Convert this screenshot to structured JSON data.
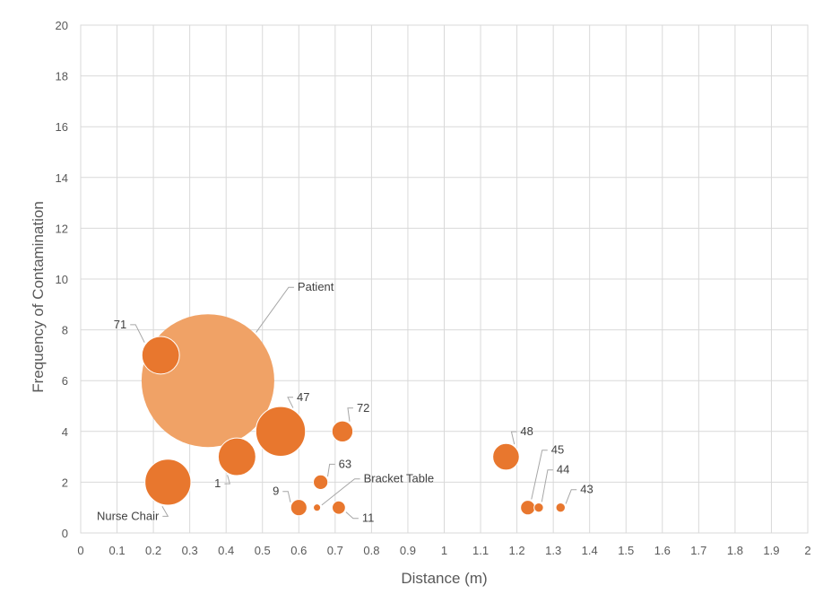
{
  "chart_data": {
    "type": "bubble",
    "xlabel": "Distance (m)",
    "ylabel": "Frequency of Contamination",
    "xlim": [
      0,
      2
    ],
    "ylim": [
      0,
      20
    ],
    "grid": true,
    "x_ticks": [
      "0",
      "0.1",
      "0.2",
      "0.3",
      "0.4",
      "0.5",
      "0.6",
      "0.7",
      "0.8",
      "0.9",
      "1",
      "1.1",
      "1.2",
      "1.3",
      "1.4",
      "1.5",
      "1.6",
      "1.7",
      "1.8",
      "1.9",
      "2"
    ],
    "y_ticks": [
      "0",
      "2",
      "4",
      "6",
      "8",
      "10",
      "12",
      "14",
      "16",
      "18",
      "20"
    ],
    "colors": {
      "bubble": "#e8772e",
      "bubble_large": "#f0a266",
      "bubble_stroke": "#ffffff"
    },
    "points": [
      {
        "label": "Patient",
        "x": 0.35,
        "y": 6,
        "size": 100
      },
      {
        "label": "71",
        "x": 0.22,
        "y": 7,
        "size": 8
      },
      {
        "label": "Nurse Chair",
        "x": 0.24,
        "y": 2,
        "size": 12
      },
      {
        "label": "1",
        "x": 0.43,
        "y": 3,
        "size": 8
      },
      {
        "label": "47",
        "x": 0.55,
        "y": 4,
        "size": 14
      },
      {
        "label": "72",
        "x": 0.72,
        "y": 4,
        "size": 2.5
      },
      {
        "label": "63",
        "x": 0.66,
        "y": 2,
        "size": 1.2
      },
      {
        "label": "Bracket Table",
        "x": 0.65,
        "y": 1,
        "size": 0.3
      },
      {
        "label": "9",
        "x": 0.6,
        "y": 1,
        "size": 1.5
      },
      {
        "label": "11",
        "x": 0.71,
        "y": 1,
        "size": 1.0
      },
      {
        "label": "48",
        "x": 1.17,
        "y": 3,
        "size": 4
      },
      {
        "label": "45",
        "x": 1.23,
        "y": 1,
        "size": 1.2
      },
      {
        "label": "44",
        "x": 1.26,
        "y": 1,
        "size": 0.5
      },
      {
        "label": "43",
        "x": 1.32,
        "y": 1,
        "size": 0.5
      }
    ]
  }
}
